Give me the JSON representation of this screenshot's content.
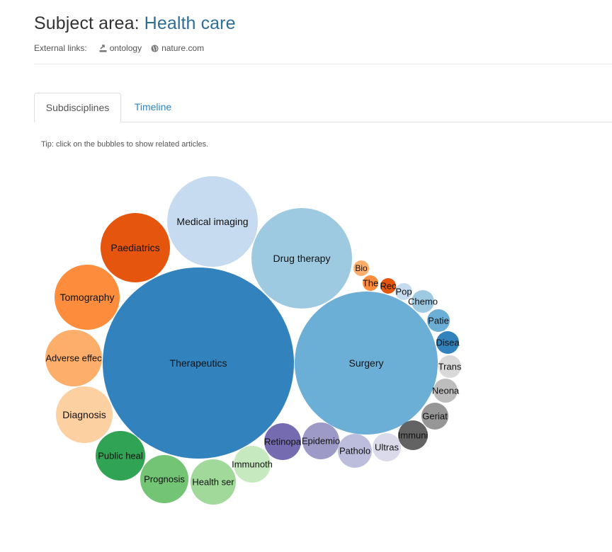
{
  "header": {
    "title_prefix": "Subject area: ",
    "subject": "Health care",
    "external_links_label": "External links:",
    "links": [
      {
        "label": "ontology",
        "icon": "export-icon"
      },
      {
        "label": "nature.com",
        "icon": "globe-icon"
      }
    ]
  },
  "tabs": [
    {
      "label": "Subdisciplines",
      "active": true
    },
    {
      "label": "Timeline",
      "active": false
    }
  ],
  "tip": "Tip: click on the bubbles to show related articles.",
  "chart_data": {
    "type": "bubble",
    "bubbles": [
      {
        "label": "Therapeutics",
        "color": "#3182bd"
      },
      {
        "label": "Surgery",
        "color": "#6baed6"
      },
      {
        "label": "Drug therapy",
        "color": "#9ecae1"
      },
      {
        "label": "Medical imaging",
        "color": "#c6dbef"
      },
      {
        "label": "Paediatrics",
        "color": "#e6550d"
      },
      {
        "label": "Tomography",
        "color": "#fd8d3c"
      },
      {
        "label": "Adverse effec",
        "color": "#fdae6b"
      },
      {
        "label": "Diagnosis",
        "color": "#fdd0a2"
      },
      {
        "label": "Public heal",
        "color": "#31a354"
      },
      {
        "label": "Prognosis",
        "color": "#74c476"
      },
      {
        "label": "Health ser",
        "color": "#a1d99b"
      },
      {
        "label": "Immunoth",
        "color": "#c7e9c0"
      },
      {
        "label": "Retinopa",
        "color": "#756bb1"
      },
      {
        "label": "Epidemio",
        "color": "#9e9ac8"
      },
      {
        "label": "Patholo",
        "color": "#bcbddc"
      },
      {
        "label": "Ultras",
        "color": "#dadaeb"
      },
      {
        "label": "Immuni",
        "color": "#636363"
      },
      {
        "label": "Geriat",
        "color": "#969696"
      },
      {
        "label": "Neona",
        "color": "#bdbdbd"
      },
      {
        "label": "Trans",
        "color": "#d9d9d9"
      },
      {
        "label": "Disea",
        "color": "#3182bd"
      },
      {
        "label": "Patie",
        "color": "#6baed6"
      },
      {
        "label": "Chemo",
        "color": "#9ecae1"
      },
      {
        "label": "Pop",
        "color": "#c6dbef"
      },
      {
        "label": "Rec",
        "color": "#e6550d"
      },
      {
        "label": "The",
        "color": "#fd8d3c"
      },
      {
        "label": "Bio",
        "color": "#fdae6b"
      }
    ]
  }
}
